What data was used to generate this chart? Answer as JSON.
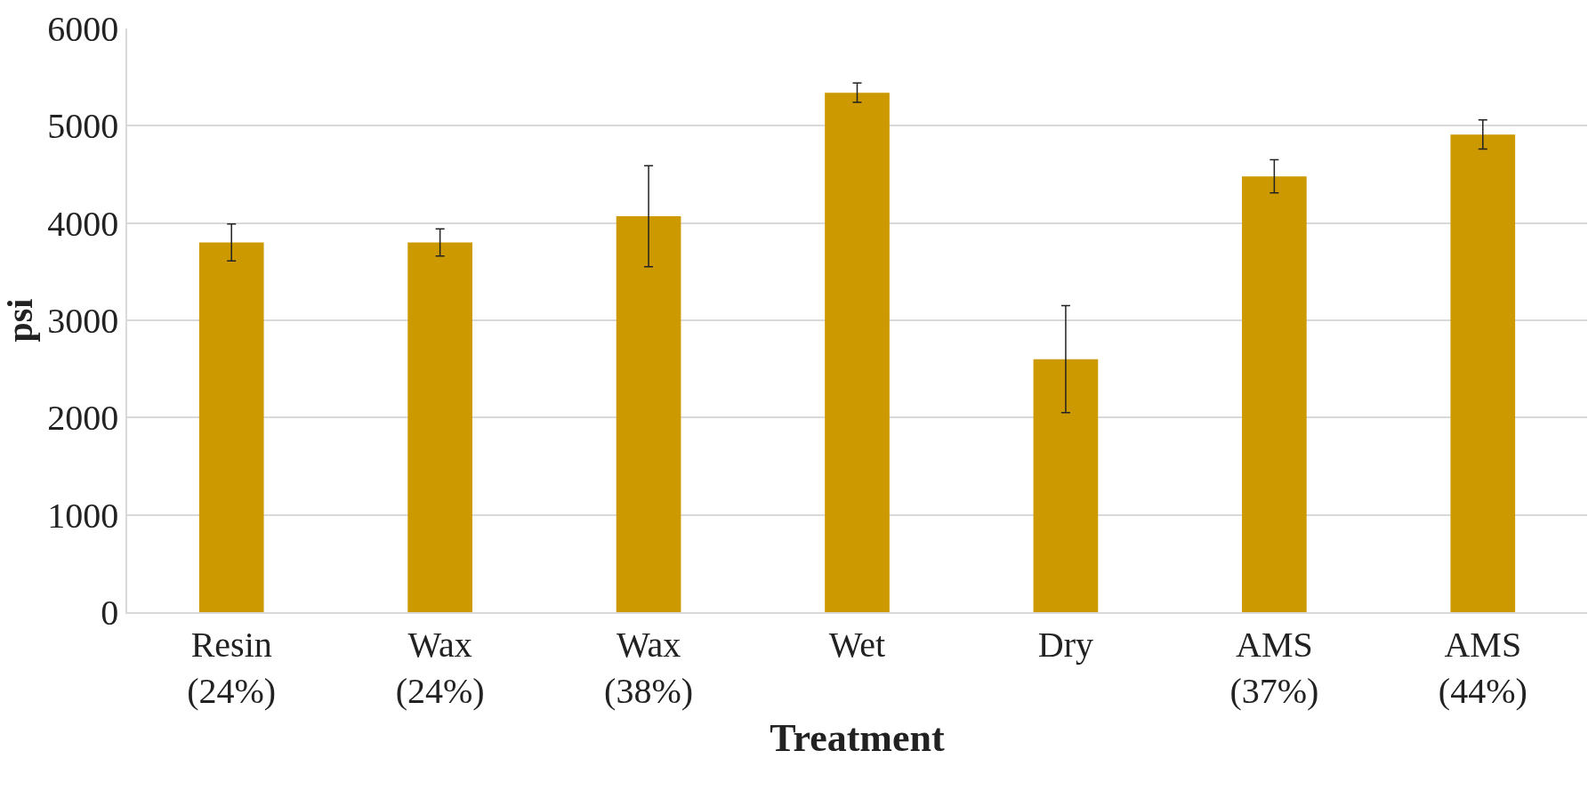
{
  "chart_data": {
    "type": "bar",
    "xlabel": "Treatment",
    "ylabel": "psi",
    "categories": [
      "Resin\n(24%)",
      "Wax\n(24%)",
      "Wax\n(38%)",
      "Wet",
      "Dry",
      "AMS\n(37%)",
      "AMS\n(44%)"
    ],
    "values": [
      3800,
      3800,
      4070,
      5340,
      2600,
      4480,
      4910
    ],
    "errors": [
      190,
      140,
      520,
      100,
      550,
      170,
      150
    ],
    "color": "#cc9900",
    "ylim": [
      0,
      6000
    ],
    "yticks": [
      0,
      1000,
      2000,
      3000,
      4000,
      5000,
      6000
    ],
    "grid": "y"
  }
}
